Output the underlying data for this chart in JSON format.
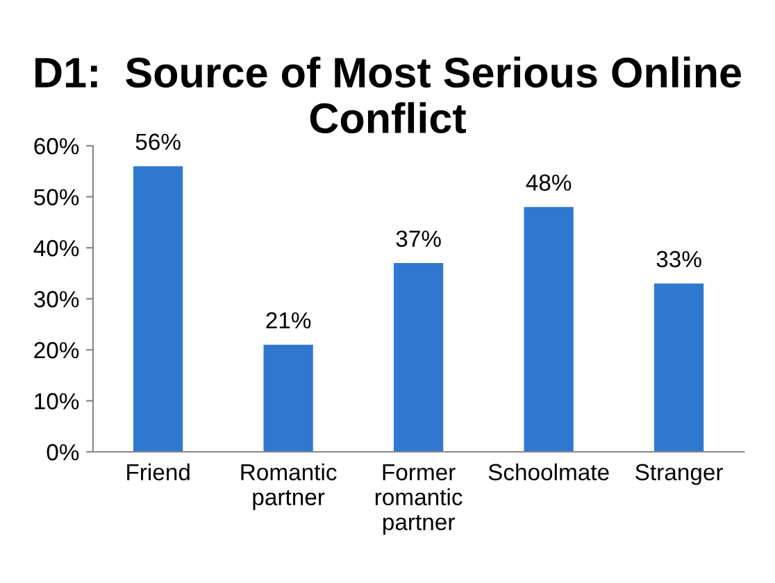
{
  "chart_data": {
    "type": "bar",
    "title": "D1:  Source of Most Serious Online Conflict",
    "categories": [
      "Friend",
      "Romantic\npartner",
      "Former\nromantic\npartner",
      "Schoolmate",
      "Stranger"
    ],
    "values": [
      56,
      21,
      37,
      48,
      33
    ],
    "value_labels": [
      "56%",
      "21%",
      "37%",
      "48%",
      "33%"
    ],
    "color": "#2f78cf",
    "ylim": [
      0,
      60
    ],
    "yticks": [
      {
        "value": 0,
        "label": "0%"
      },
      {
        "value": 10,
        "label": "10%"
      },
      {
        "value": 20,
        "label": "20%"
      },
      {
        "value": 30,
        "label": "30%"
      },
      {
        "value": 40,
        "label": "40%"
      },
      {
        "value": 50,
        "label": "50%"
      },
      {
        "value": 60,
        "label": "60%"
      }
    ]
  }
}
